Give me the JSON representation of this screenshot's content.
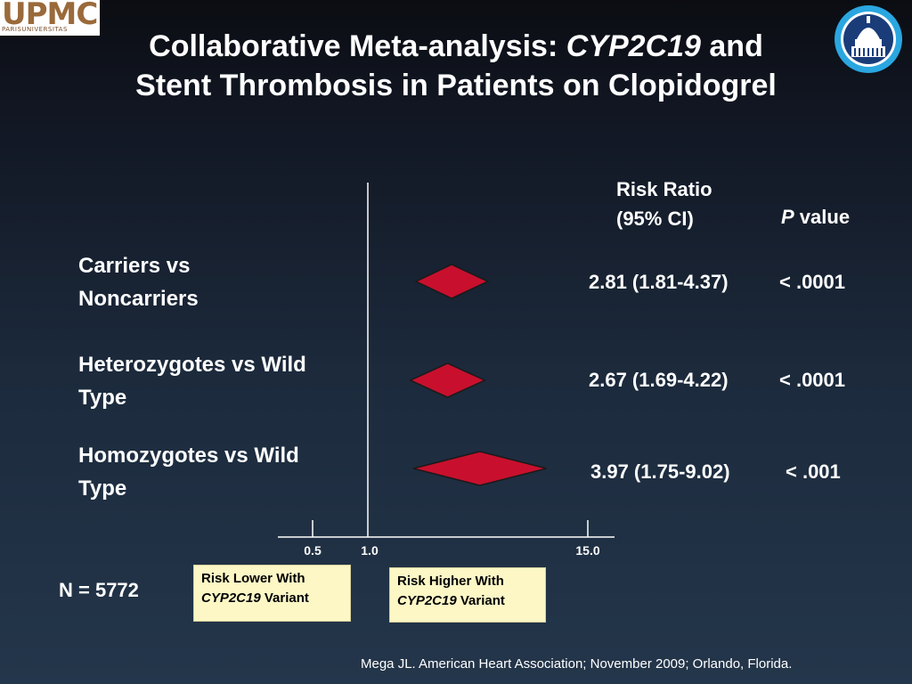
{
  "logo": {
    "text": "UPMC",
    "subtext": "PARISUNIVERSITAS",
    "alt_icon": "upmc-logo"
  },
  "seal": {
    "icon": "capitol-dome-seal-icon"
  },
  "title": {
    "line1_pre": "Collaborative Meta-analysis: ",
    "line1_italic": "CYP2C19",
    "line1_post": " and",
    "line2": "Stent Thrombosis in Patients on Clopidogrel"
  },
  "headers": {
    "risk_ratio_line1": "Risk Ratio",
    "risk_ratio_line2": "(95% CI)",
    "p_italic": "P",
    "p_rest": " value"
  },
  "chart_data": {
    "type": "forest",
    "x_ticks": [
      "0.5",
      "1.0",
      "15.0"
    ],
    "reference_line": 1.0,
    "rows": [
      {
        "label_line1": "Carriers vs",
        "label_line2": "Noncarriers",
        "rr": 2.81,
        "ci_low": 1.81,
        "ci_high": 4.37,
        "rr_text": "2.81 (1.81-4.37)",
        "p_text": "< .0001"
      },
      {
        "label_line1": "Heterozygotes vs Wild",
        "label_line2": "Type",
        "rr": 2.67,
        "ci_low": 1.69,
        "ci_high": 4.22,
        "rr_text": "2.67 (1.69-4.22)",
        "p_text": "< .0001"
      },
      {
        "label_line1": "Homozygotes vs Wild",
        "label_line2": "Type",
        "rr": 3.97,
        "ci_low": 1.75,
        "ci_high": 9.02,
        "rr_text": "3.97 (1.75-9.02)",
        "p_text": "< .001"
      }
    ],
    "diamond_color": "#c8102e"
  },
  "legend": {
    "lower_line1": "Risk Lower With",
    "lower_italic": "CYP2C19",
    "lower_rest": " Variant",
    "higher_line1": "Risk Higher With",
    "higher_italic": "CYP2C19",
    "higher_rest": " Variant"
  },
  "n_value": "N = 5772",
  "citation": "Mega JL. American Heart Association; November 2009; Orlando, Florida."
}
